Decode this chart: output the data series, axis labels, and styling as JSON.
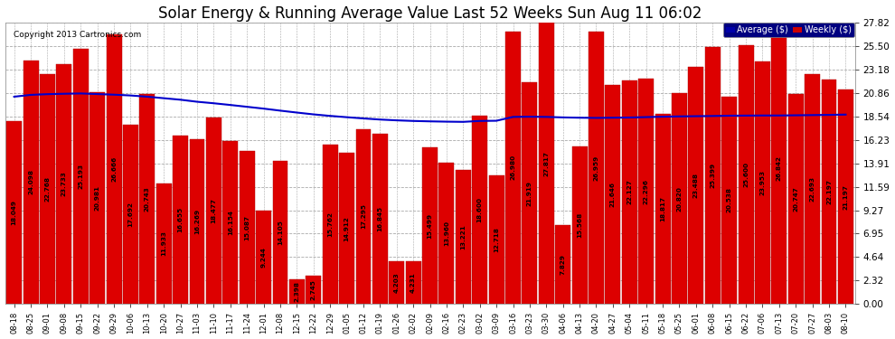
{
  "title": "Solar Energy & Running Average Value Last 52 Weeks Sun Aug 11 06:02",
  "copyright": "Copyright 2013 Cartronics.com",
  "yticks": [
    0.0,
    2.32,
    4.64,
    6.95,
    9.27,
    11.59,
    13.91,
    16.23,
    18.54,
    20.86,
    23.18,
    25.5,
    27.82
  ],
  "xlabels": [
    "08-18",
    "08-25",
    "09-01",
    "09-08",
    "09-15",
    "09-22",
    "09-29",
    "10-06",
    "10-13",
    "10-20",
    "10-27",
    "11-03",
    "11-10",
    "11-17",
    "11-24",
    "12-01",
    "12-08",
    "12-15",
    "12-22",
    "12-29",
    "01-05",
    "01-12",
    "01-19",
    "01-26",
    "02-02",
    "02-09",
    "02-16",
    "02-23",
    "03-02",
    "03-09",
    "03-16",
    "03-23",
    "03-30",
    "04-06",
    "04-13",
    "04-20",
    "04-27",
    "05-04",
    "05-11",
    "05-18",
    "05-25",
    "06-01",
    "06-08",
    "06-15",
    "06-22",
    "07-06",
    "07-13",
    "07-20",
    "07-27",
    "08-03",
    "08-10"
  ],
  "bar_values": [
    18.049,
    24.098,
    22.768,
    23.733,
    25.193,
    20.981,
    26.666,
    17.692,
    20.743,
    11.933,
    16.655,
    16.269,
    18.477,
    16.154,
    15.087,
    9.244,
    14.105,
    2.398,
    2.745,
    15.762,
    14.912,
    17.295,
    16.845,
    4.203,
    4.231,
    15.499,
    13.96,
    13.221,
    18.6,
    12.718,
    26.98,
    21.919,
    27.817,
    7.829,
    15.568,
    26.959,
    21.646,
    22.127,
    22.296,
    18.817,
    20.82,
    23.488,
    25.399,
    20.538,
    25.6,
    23.953,
    26.842,
    20.747,
    22.693,
    22.197,
    21.197
  ],
  "avg_values": [
    20.5,
    20.68,
    20.75,
    20.79,
    20.82,
    20.76,
    20.7,
    20.62,
    20.5,
    20.35,
    20.2,
    20.0,
    19.85,
    19.68,
    19.5,
    19.32,
    19.12,
    18.93,
    18.75,
    18.6,
    18.47,
    18.35,
    18.24,
    18.16,
    18.1,
    18.06,
    18.03,
    18.01,
    18.1,
    18.12,
    18.5,
    18.52,
    18.5,
    18.45,
    18.42,
    18.4,
    18.42,
    18.44,
    18.48,
    18.52,
    18.55,
    18.57,
    18.59,
    18.62,
    18.63,
    18.64,
    18.64,
    18.66,
    18.68,
    18.7,
    18.73
  ],
  "bar_color": "#dd0000",
  "avg_color": "#0000cc",
  "bg_color": "#ffffff",
  "plot_bg_color": "#ffffff",
  "grid_color": "#aaaaaa",
  "title_fontsize": 12,
  "bar_label_fontsize": 5.2,
  "xtick_fontsize": 6.0,
  "ytick_fontsize": 7.5
}
